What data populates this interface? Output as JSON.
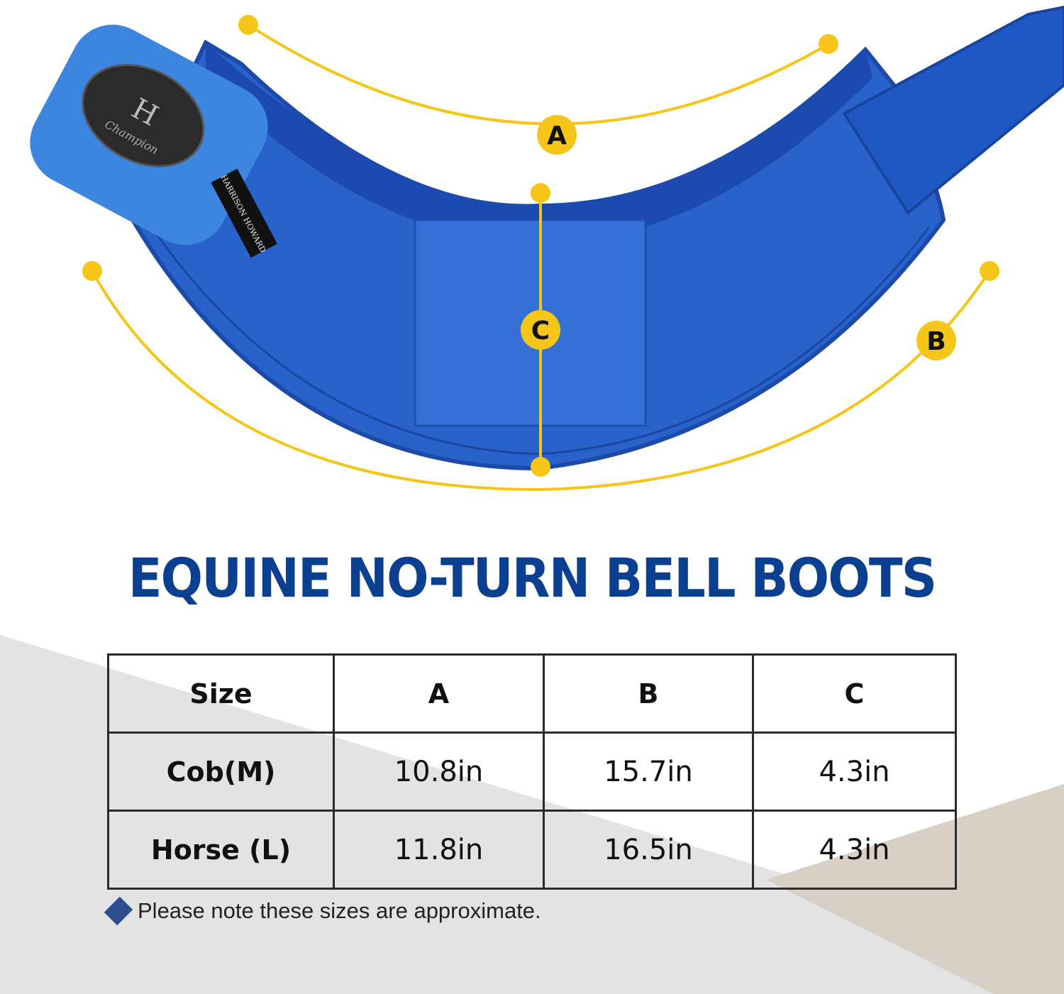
{
  "product": {
    "brand_logo_text": "HARRISON HOWARD",
    "brand_logo_sub": "Champion",
    "tag_text": "HARRISON HOWARD",
    "colors": {
      "boot": "#1f5fd0",
      "measure_lines": "#f5c518",
      "title": "#0b3f8f"
    }
  },
  "dimensions": {
    "a": "A",
    "b": "B",
    "c": "C"
  },
  "title": "EQUINE NO-TURN BELL BOOTS",
  "size_table": {
    "headers": [
      "Size",
      "A",
      "B",
      "C"
    ],
    "rows": [
      [
        "Cob(M)",
        "10.8in",
        "15.7in",
        "4.3in"
      ],
      [
        "Horse (L)",
        "11.8in",
        "16.5in",
        "4.3in"
      ]
    ]
  },
  "note": "Please note these sizes are approximate."
}
